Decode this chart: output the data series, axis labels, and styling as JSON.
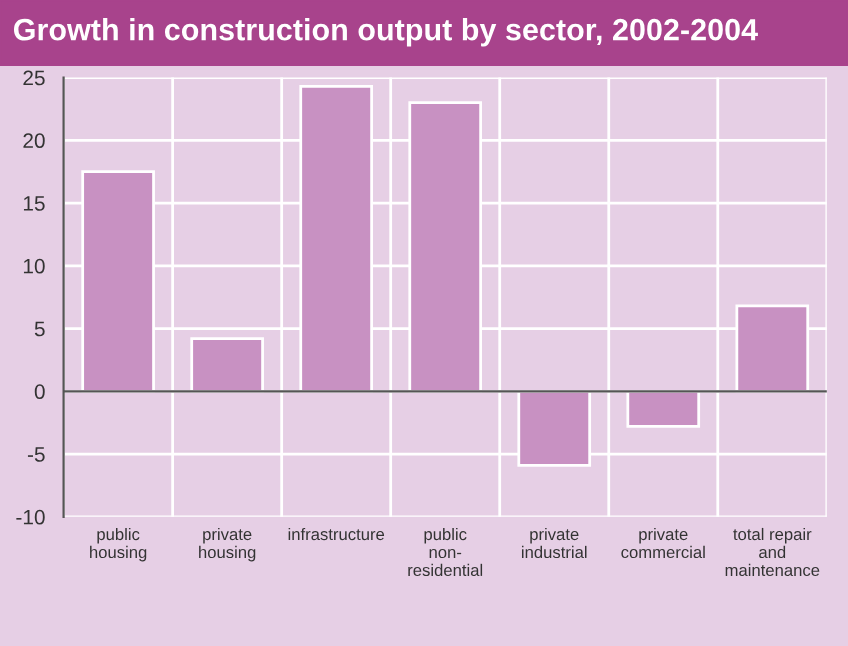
{
  "chart_data": {
    "type": "bar",
    "title": "Growth in construction output by sector, 2002-2004",
    "categories": [
      "public\nhousing",
      "private\nhousing",
      "infrastructure",
      "public\nnon-\nresidential",
      "private\nindustrial",
      "private\ncommercial",
      "total repair\nand\nmaintenance"
    ],
    "values": [
      17.5,
      4.2,
      24.3,
      23.0,
      -5.9,
      -2.8,
      6.8
    ],
    "color": "#c891c2",
    "ylim": [
      -10,
      25
    ],
    "yticks": [
      -10,
      -5,
      0,
      5,
      10,
      15,
      20,
      25
    ],
    "grid": true
  }
}
